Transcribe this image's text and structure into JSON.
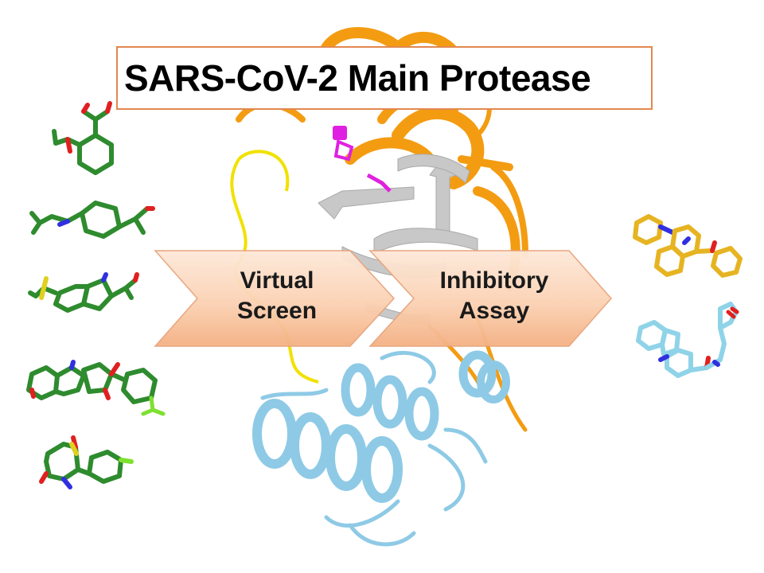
{
  "title": "SARS-CoV-2 Main Protease",
  "steps": [
    {
      "label": "Virtual\nScreen"
    },
    {
      "label": "Inhibitory\nAssay"
    }
  ],
  "colors": {
    "title_border": "#e2884f",
    "arrow_fill_light": "#fde4d2",
    "arrow_fill_dark": "#f5b88f",
    "protein_domain_1": "#f39c12",
    "protein_domain_2": "#a9a9a9",
    "protein_domain_3": "#8ecae6",
    "linker": "#f1e100",
    "active_site": "#e020e0",
    "ligand_screened": "#2e8b2e",
    "ligand_hit_1": "#e6b422",
    "ligand_hit_2": "#8fd3e8",
    "atom_oxygen": "#e02020",
    "atom_nitrogen": "#3030e0",
    "atom_sulfur": "#e0d020",
    "atom_halogen": "#7fe030"
  },
  "icons": {
    "protein": "protein-ribbon-icon",
    "ligand": "molecule-stick-icon",
    "step": "chevron-arrow-icon"
  }
}
